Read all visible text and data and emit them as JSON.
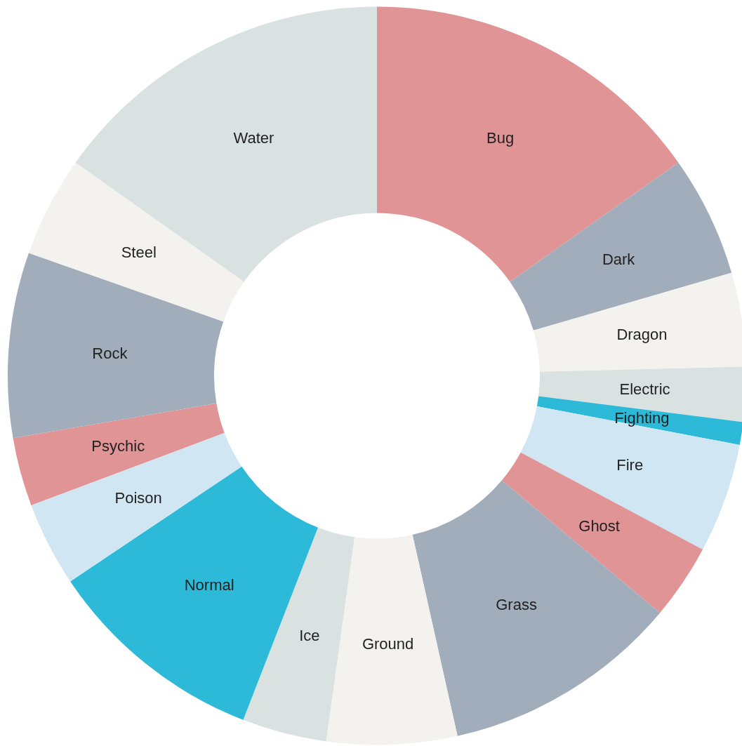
{
  "chart_data": {
    "type": "donut",
    "categories": [
      "Bug",
      "Dark",
      "Dragon",
      "Electric",
      "Fighting",
      "Fire",
      "Ghost",
      "Grass",
      "Ground",
      "Ice",
      "Normal",
      "Poison",
      "Psychic",
      "Rock",
      "Steel",
      "Water"
    ],
    "values": [
      15.2,
      5.3,
      4.1,
      2.4,
      1.0,
      4.8,
      3.3,
      10.4,
      5.7,
      3.7,
      9.7,
      3.7,
      3.0,
      8.1,
      4.4,
      15.2
    ],
    "colors": [
      "#e09496",
      "#a2adbb",
      "#f3f2ee",
      "#d9e1e1",
      "#2cbad8",
      "#d0e7f3",
      "#e09496",
      "#a2adbb",
      "#f3f2ee",
      "#d9e1e1",
      "#2cbad8",
      "#d0e7f3",
      "#e09496",
      "#a2adbb",
      "#f3f2ee",
      "#d9e1e1"
    ]
  }
}
